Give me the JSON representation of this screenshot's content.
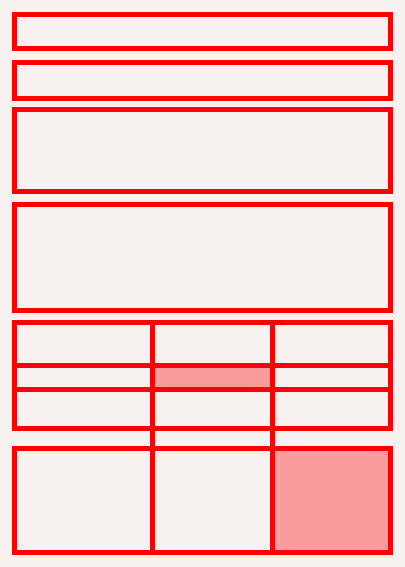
{
  "theme": {
    "background": "#f7f1f0",
    "outline": "#ff0000",
    "highlight": "#fa9c9c"
  },
  "panels": [
    {
      "name": "panel-1",
      "highlighted": false
    },
    {
      "name": "panel-2",
      "highlighted": false
    },
    {
      "name": "panel-3",
      "highlighted": false
    },
    {
      "name": "panel-4",
      "highlighted": false
    }
  ],
  "grid": {
    "name": "three-column-grid",
    "highlighted_cells": [
      {
        "row": 2,
        "col": 2
      },
      {
        "row": 4,
        "col": 3
      }
    ]
  }
}
